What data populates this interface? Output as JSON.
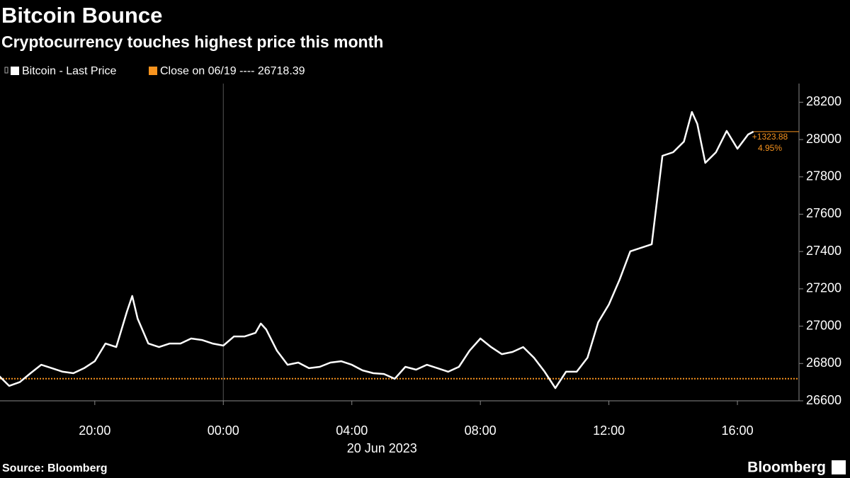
{
  "chart_data": {
    "type": "line",
    "title": "Bitcoin Bounce",
    "subtitle": "Cryptocurrency touches highest price this month",
    "x": [
      "2023-06-19T17:00",
      "2023-06-19T17:20",
      "2023-06-19T17:40",
      "2023-06-19T18:00",
      "2023-06-19T18:20",
      "2023-06-19T18:40",
      "2023-06-19T19:00",
      "2023-06-19T19:20",
      "2023-06-19T19:40",
      "2023-06-19T20:00",
      "2023-06-19T20:20",
      "2023-06-19T20:40",
      "2023-06-19T21:00",
      "2023-06-19T21:10",
      "2023-06-19T21:20",
      "2023-06-19T21:40",
      "2023-06-19T22:00",
      "2023-06-19T22:20",
      "2023-06-19T22:40",
      "2023-06-19T23:00",
      "2023-06-19T23:20",
      "2023-06-19T23:40",
      "2023-06-20T00:00",
      "2023-06-20T00:20",
      "2023-06-20T00:40",
      "2023-06-20T01:00",
      "2023-06-20T01:10",
      "2023-06-20T01:20",
      "2023-06-20T01:40",
      "2023-06-20T02:00",
      "2023-06-20T02:20",
      "2023-06-20T02:40",
      "2023-06-20T03:00",
      "2023-06-20T03:20",
      "2023-06-20T03:40",
      "2023-06-20T04:00",
      "2023-06-20T04:20",
      "2023-06-20T04:40",
      "2023-06-20T05:00",
      "2023-06-20T05:20",
      "2023-06-20T05:40",
      "2023-06-20T06:00",
      "2023-06-20T06:20",
      "2023-06-20T06:40",
      "2023-06-20T07:00",
      "2023-06-20T07:20",
      "2023-06-20T07:40",
      "2023-06-20T08:00",
      "2023-06-20T08:20",
      "2023-06-20T08:40",
      "2023-06-20T09:00",
      "2023-06-20T09:20",
      "2023-06-20T09:40",
      "2023-06-20T10:00",
      "2023-06-20T10:20",
      "2023-06-20T10:40",
      "2023-06-20T11:00",
      "2023-06-20T11:20",
      "2023-06-20T11:40",
      "2023-06-20T12:00",
      "2023-06-20T12:20",
      "2023-06-20T12:40",
      "2023-06-20T13:00",
      "2023-06-20T13:20",
      "2023-06-20T13:40",
      "2023-06-20T14:00",
      "2023-06-20T14:20",
      "2023-06-20T14:35",
      "2023-06-20T14:45",
      "2023-06-20T15:00",
      "2023-06-20T15:20",
      "2023-06-20T15:40",
      "2023-06-20T16:00",
      "2023-06-20T16:20",
      "2023-06-20T16:30"
    ],
    "series": [
      {
        "name": "Bitcoin - Last Price",
        "color": "#ffffff",
        "values": [
          26737,
          26680,
          26700,
          26748,
          26793,
          26775,
          26756,
          26748,
          26775,
          26812,
          26907,
          26888,
          27078,
          27162,
          27040,
          26907,
          26888,
          26907,
          26907,
          26934,
          26926,
          26907,
          26896,
          26945,
          26945,
          26964,
          27014,
          26983,
          26869,
          26793,
          26805,
          26775,
          26782,
          26805,
          26812,
          26793,
          26763,
          26748,
          26744,
          26718,
          26782,
          26767,
          26793,
          26775,
          26756,
          26782,
          26869,
          26934,
          26888,
          26850,
          26862,
          26888,
          26831,
          26756,
          26668,
          26756,
          26756,
          26831,
          27021,
          27116,
          27249,
          27401,
          27420,
          27439,
          27913,
          27932,
          27989,
          28148,
          28084,
          27875,
          27932,
          28046,
          27951,
          28027,
          28042.27
        ]
      }
    ],
    "reference": {
      "name": "Close on 06/19 ---- 26718.39",
      "value": 26718.39,
      "color": "#f7931e"
    },
    "annotations": [
      "+1323.88",
      "4.95%"
    ],
    "annotation_color": "#f7931e",
    "xlim": [
      "2023-06-19T17:03",
      "2023-06-20T17:55"
    ],
    "xticks": [
      {
        "value": "2023-06-19T20:00",
        "label": "20:00"
      },
      {
        "value": "2023-06-20T00:00",
        "label": "00:00"
      },
      {
        "value": "2023-06-20T04:00",
        "label": "04:00"
      },
      {
        "value": "2023-06-20T08:00",
        "label": "08:00"
      },
      {
        "value": "2023-06-20T12:00",
        "label": "12:00"
      },
      {
        "value": "2023-06-20T16:00",
        "label": "16:00"
      }
    ],
    "day_divider": "2023-06-20T00:00",
    "xlabel": "20 Jun 2023",
    "ylim": [
      26600,
      28300
    ],
    "yticks": [
      26600,
      26800,
      27000,
      27200,
      27400,
      27600,
      27800,
      28000,
      28200
    ],
    "source": "Source: Bloomberg",
    "logo": "Bloomberg"
  }
}
